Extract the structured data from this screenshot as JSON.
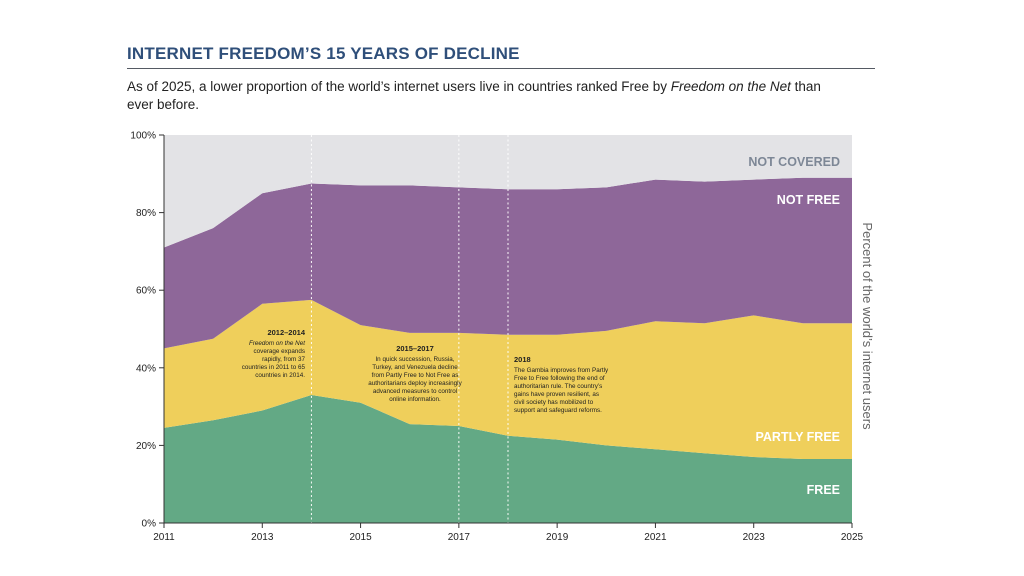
{
  "header": {
    "title": "INTERNET FREEDOM’S 15 YEARS OF DECLINE",
    "subtitle_part1": "As of 2025, a lower proportion of the world’s internet users live in countries ranked Free by ",
    "subtitle_em": "Freedom on the Net",
    "subtitle_part2": " than ever before."
  },
  "colors": {
    "free": "#63a985",
    "partly_free": "#efcf5b",
    "not_free": "#8e6799",
    "not_covered": "#e3e3e6",
    "not_covered_text": "#7d8796",
    "label_white": "#ffffff",
    "title": "#2f4f7a"
  },
  "chart_data": {
    "type": "area",
    "title": "INTERNET FREEDOM’S 15 YEARS OF DECLINE",
    "xlabel": "",
    "ylabel": "Percent of the world’s internet users",
    "x": [
      2011,
      2012,
      2013,
      2014,
      2015,
      2016,
      2017,
      2018,
      2019,
      2020,
      2021,
      2022,
      2023,
      2024,
      2025
    ],
    "xlim": [
      2011,
      2025
    ],
    "ylim": [
      0,
      100
    ],
    "xticks": [
      2011,
      2013,
      2015,
      2017,
      2019,
      2021,
      2023,
      2025
    ],
    "yticks": [
      0,
      20,
      40,
      60,
      80,
      100
    ],
    "ytick_labels": [
      "0%",
      "20%",
      "40%",
      "60%",
      "80%",
      "100%"
    ],
    "stacked": true,
    "series": [
      {
        "name": "FREE",
        "key": "free",
        "values": [
          24.5,
          26.5,
          29,
          33,
          31,
          25.5,
          25,
          22.5,
          21.5,
          20,
          19,
          18,
          17,
          16.5,
          16.5
        ]
      },
      {
        "name": "PARTLY FREE",
        "key": "partly_free",
        "values": [
          20.5,
          21,
          27.5,
          24.5,
          20,
          23.5,
          24,
          26,
          27,
          29.5,
          33,
          33.5,
          36.5,
          35,
          35
        ]
      },
      {
        "name": "NOT FREE",
        "key": "not_free",
        "values": [
          26,
          28.5,
          28.5,
          30,
          36,
          38,
          37.5,
          37.5,
          37.5,
          37,
          36.5,
          36.5,
          35,
          37.5,
          37.5
        ]
      },
      {
        "name": "NOT COVERED",
        "key": "not_covered",
        "values": [
          29,
          24,
          15,
          12.5,
          13,
          13,
          13.5,
          14,
          14,
          13.5,
          11.5,
          12,
          11.5,
          11,
          11
        ]
      }
    ],
    "vlines": [
      2014,
      2017,
      2018
    ],
    "annotations": [
      {
        "title": "2012–2014",
        "lines": [
          "Freedom on the Net",
          "coverage expands",
          "rapidly, from 37",
          "countries in 2011 to 65",
          "countries in 2014."
        ],
        "italic_first": true,
        "anchor": "end"
      },
      {
        "title": "2015–2017",
        "lines": [
          "In quick succession, Russia,",
          "Turkey, and Venezuela decline",
          "from Partly Free to Not Free as",
          "authoritarians deploy increasingly",
          "advanced measures to control",
          "online information."
        ],
        "italic_first": false,
        "anchor": "middle"
      },
      {
        "title": "2018",
        "lines": [
          "The Gambia improves from Partly",
          "Free to Free following the end of",
          "authoritarian rule. The country’s",
          "gains have proven resilient, as",
          "civil society has mobilized to",
          "support and safeguard reforms."
        ],
        "italic_first": false,
        "anchor": "start"
      }
    ]
  }
}
